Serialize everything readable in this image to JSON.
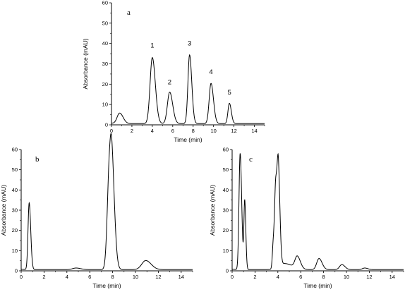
{
  "chart_data": [
    {
      "type": "line",
      "panel_label": "a",
      "xlabel": "Time (min)",
      "ylabel": "Absorbance (mAU)",
      "xlim": [
        0,
        15
      ],
      "ylim": [
        0,
        60
      ],
      "xticks": [
        "0",
        "2",
        "4",
        "6",
        "8",
        "10",
        "12",
        "14"
      ],
      "yticks": [
        "0",
        "10",
        "20",
        "30",
        "40",
        "50",
        "60"
      ],
      "grid": false,
      "peaks": [
        {
          "t": 0.8,
          "h": 5.2,
          "w": 0.25
        },
        {
          "t": 4.0,
          "h": 32.5,
          "w": 0.22
        },
        {
          "t": 5.7,
          "h": 15.5,
          "w": 0.22
        },
        {
          "t": 7.65,
          "h": 33.8,
          "w": 0.16
        },
        {
          "t": 9.75,
          "h": 19.8,
          "w": 0.18
        },
        {
          "t": 11.55,
          "h": 10.0,
          "w": 0.14
        }
      ],
      "peak_labels": [
        {
          "text": "1",
          "t": 4.0,
          "y": 38
        },
        {
          "text": "2",
          "t": 5.7,
          "y": 20
        },
        {
          "text": "3",
          "t": 7.65,
          "y": 39
        },
        {
          "text": "4",
          "t": 9.75,
          "y": 25
        },
        {
          "text": "5",
          "t": 11.55,
          "y": 15
        }
      ]
    },
    {
      "type": "line",
      "panel_label": "b",
      "xlabel": "Time (min)",
      "ylabel": "Absorbance (mAU)",
      "xlim": [
        0,
        15
      ],
      "ylim": [
        0,
        60
      ],
      "xticks": [
        "0",
        "2",
        "4",
        "6",
        "8",
        "10",
        "12",
        "14"
      ],
      "yticks": [
        "0",
        "10",
        "20",
        "30",
        "40",
        "50",
        "60"
      ],
      "grid": false,
      "peaks": [
        {
          "t": 0.7,
          "h": 33.0,
          "w": 0.1
        },
        {
          "t": 4.8,
          "h": 0.8,
          "w": 0.3
        },
        {
          "t": 7.7,
          "h": 42.0,
          "w": 0.18
        },
        {
          "t": 7.95,
          "h": 38.0,
          "w": 0.18
        },
        {
          "t": 10.9,
          "h": 4.5,
          "w": 0.35
        }
      ],
      "peak_labels": []
    },
    {
      "type": "line",
      "panel_label": "c",
      "xlabel": "Time (min)",
      "ylabel": "Absorbance (mAU)",
      "xlim": [
        0,
        15
      ],
      "ylim": [
        0,
        60
      ],
      "xticks": [
        "0",
        "2",
        "4",
        "6",
        "8",
        "10",
        "12",
        "14"
      ],
      "yticks": [
        "0",
        "10",
        "20",
        "30",
        "40",
        "50",
        "60"
      ],
      "grid": false,
      "peaks": [
        {
          "t": 0.7,
          "h": 57.5,
          "w": 0.1
        },
        {
          "t": 1.1,
          "h": 34.0,
          "w": 0.07
        },
        {
          "t": 3.6,
          "h": 12.0,
          "w": 0.08
        },
        {
          "t": 3.82,
          "h": 40.5,
          "w": 0.1
        },
        {
          "t": 4.05,
          "h": 44.0,
          "w": 0.1
        },
        {
          "t": 4.6,
          "h": 3.0,
          "w": 0.5
        },
        {
          "t": 5.7,
          "h": 6.0,
          "w": 0.2
        },
        {
          "t": 7.6,
          "h": 5.5,
          "w": 0.2
        },
        {
          "t": 9.6,
          "h": 2.5,
          "w": 0.2
        },
        {
          "t": 11.6,
          "h": 0.8,
          "w": 0.2
        }
      ],
      "peak_labels": []
    }
  ]
}
